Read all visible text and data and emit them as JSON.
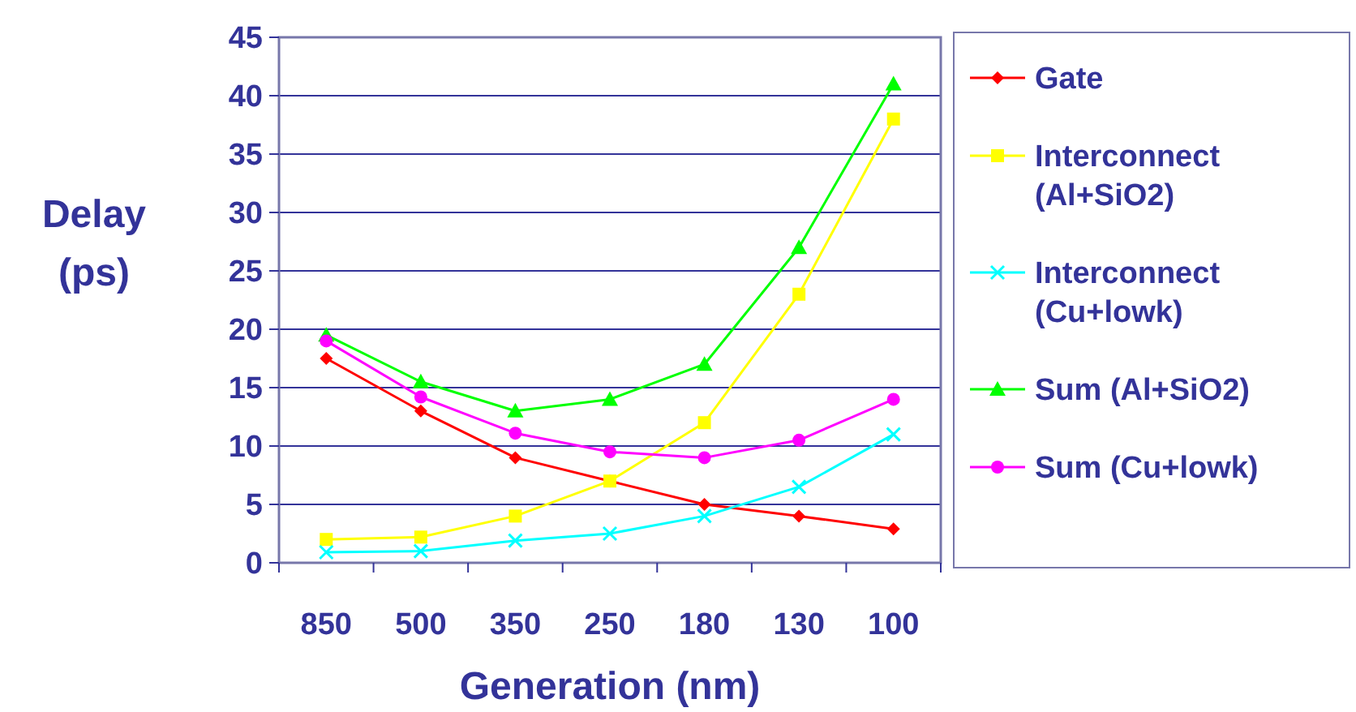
{
  "chart_data": {
    "type": "line",
    "xlabel": "Generation (nm)",
    "ylabel": "Delay (ps)",
    "categories": [
      "850",
      "500",
      "350",
      "250",
      "180",
      "130",
      "100"
    ],
    "ylim": [
      0,
      45
    ],
    "yticks": [
      0,
      5,
      10,
      15,
      20,
      25,
      30,
      35,
      40,
      45
    ],
    "grid": "y",
    "legend": "right",
    "series": [
      {
        "name": "Gate",
        "color": "#ff0000",
        "marker": "diamond",
        "values": [
          17.5,
          13,
          9,
          7,
          5,
          4,
          2.9
        ]
      },
      {
        "name": "Interconnect (Al+SiO2)",
        "color": "#ffff00",
        "marker": "square",
        "values": [
          2,
          2.2,
          4,
          7,
          12,
          23,
          38
        ]
      },
      {
        "name": "Interconnect (Cu+lowk)",
        "color": "#00ffff",
        "marker": "cross",
        "values": [
          0.9,
          1,
          1.9,
          2.5,
          4,
          6.5,
          11
        ]
      },
      {
        "name": "Sum (Al+SiO2)",
        "color": "#00ff00",
        "marker": "triangle",
        "values": [
          19.5,
          15.5,
          13,
          14,
          17,
          27,
          41
        ]
      },
      {
        "name": "Sum (Cu+lowk)",
        "color": "#ff00ff",
        "marker": "circle",
        "values": [
          19,
          14.2,
          11.1,
          9.5,
          9,
          10.5,
          14
        ]
      }
    ]
  }
}
